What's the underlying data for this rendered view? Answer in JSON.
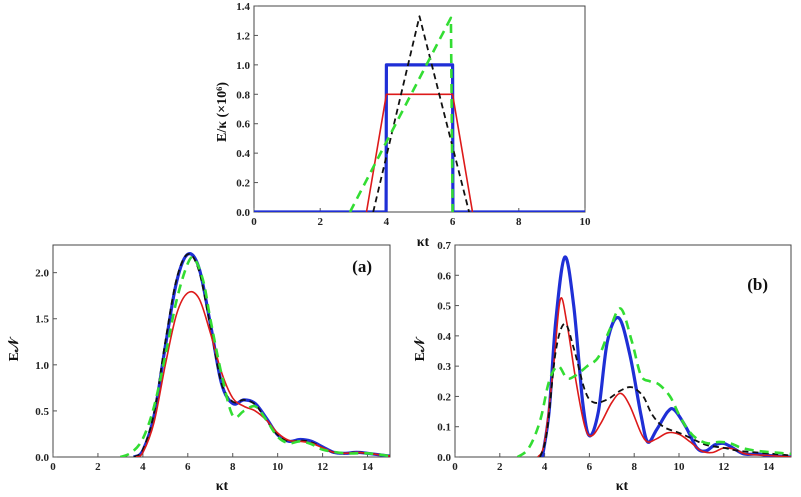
{
  "chart_data": [
    {
      "type": "line",
      "ylabel": "E/κ (×10⁶)",
      "xlabel": "κt",
      "xlim": [
        0,
        10
      ],
      "ylim": [
        0,
        1.4
      ],
      "xticks": [
        "0",
        "2",
        "4",
        "6",
        "8",
        "10"
      ],
      "yticks": [
        "0.0",
        "0.2",
        "0.4",
        "0.6",
        "0.8",
        "1.0",
        "1.2",
        "1.4"
      ],
      "grid": false,
      "series": [
        {
          "color": "#1f2fd6",
          "style": "solid-thick",
          "points": [
            [
              0,
              0
            ],
            [
              3.99,
              0
            ],
            [
              4,
              1.0
            ],
            [
              6,
              1.0
            ],
            [
              6.01,
              0
            ],
            [
              10,
              0
            ]
          ]
        },
        {
          "color": "#dd1a1a",
          "style": "solid-thin",
          "points": [
            [
              3.4,
              0
            ],
            [
              4,
              0.8
            ],
            [
              6,
              0.8
            ],
            [
              6.6,
              0
            ]
          ]
        },
        {
          "color": "#111111",
          "style": "dashed",
          "points": [
            [
              3.6,
              0
            ],
            [
              5,
              1.33
            ],
            [
              6.5,
              0
            ]
          ]
        },
        {
          "color": "#33dd33",
          "style": "dashed-thick",
          "points": [
            [
              2.9,
              0
            ],
            [
              5.95,
              1.32
            ],
            [
              6.0,
              0
            ]
          ]
        }
      ]
    },
    {
      "type": "line",
      "panel_label": "(a)",
      "ylabel": "E𝒩",
      "xlabel": "κt",
      "xlim": [
        0,
        15
      ],
      "ylim": [
        0,
        2.3
      ],
      "xticks": [
        "0",
        "2",
        "4",
        "6",
        "8",
        "10",
        "12",
        "14"
      ],
      "yticks": [
        "0.0",
        "0.5",
        "1.0",
        "1.5",
        "2.0"
      ],
      "grid": false,
      "series": [
        {
          "color": "#1f2fd6",
          "style": "solid-thick",
          "points": [
            [
              3.6,
              0
            ],
            [
              4,
              0.07
            ],
            [
              4.5,
              0.45
            ],
            [
              5,
              1.2
            ],
            [
              5.5,
              1.9
            ],
            [
              6,
              2.2
            ],
            [
              6.5,
              2.05
            ],
            [
              7,
              1.45
            ],
            [
              7.5,
              0.8
            ],
            [
              8,
              0.58
            ],
            [
              8.5,
              0.62
            ],
            [
              9,
              0.58
            ],
            [
              9.5,
              0.42
            ],
            [
              10,
              0.24
            ],
            [
              10.5,
              0.17
            ],
            [
              11,
              0.19
            ],
            [
              11.5,
              0.17
            ],
            [
              12,
              0.11
            ],
            [
              12.5,
              0.05
            ],
            [
              13,
              0.04
            ],
            [
              13.5,
              0.05
            ],
            [
              14,
              0.04
            ],
            [
              14.5,
              0.025
            ],
            [
              15,
              0.01
            ]
          ]
        },
        {
          "color": "#111111",
          "style": "dashed",
          "points": [
            [
              3.6,
              0
            ],
            [
              4,
              0.08
            ],
            [
              4.5,
              0.48
            ],
            [
              5,
              1.25
            ],
            [
              5.5,
              1.93
            ],
            [
              6,
              2.2
            ],
            [
              6.5,
              2.02
            ],
            [
              7,
              1.42
            ],
            [
              7.5,
              0.8
            ],
            [
              8,
              0.6
            ],
            [
              8.5,
              0.62
            ],
            [
              9,
              0.57
            ],
            [
              9.5,
              0.4
            ],
            [
              10,
              0.24
            ],
            [
              10.5,
              0.17
            ],
            [
              11,
              0.18
            ],
            [
              11.5,
              0.16
            ],
            [
              12,
              0.1
            ],
            [
              12.5,
              0.05
            ],
            [
              13,
              0.04
            ],
            [
              13.5,
              0.05
            ],
            [
              14,
              0.04
            ],
            [
              15,
              0.01
            ]
          ]
        },
        {
          "color": "#dd1a1a",
          "style": "solid-thin",
          "points": [
            [
              3.7,
              0
            ],
            [
              4,
              0.05
            ],
            [
              4.5,
              0.38
            ],
            [
              5,
              1.0
            ],
            [
              5.5,
              1.55
            ],
            [
              6,
              1.78
            ],
            [
              6.5,
              1.72
            ],
            [
              7,
              1.35
            ],
            [
              7.5,
              0.92
            ],
            [
              8,
              0.64
            ],
            [
              8.5,
              0.55
            ],
            [
              9,
              0.5
            ],
            [
              9.5,
              0.4
            ],
            [
              10,
              0.26
            ],
            [
              10.5,
              0.18
            ],
            [
              11,
              0.17
            ],
            [
              11.5,
              0.15
            ],
            [
              12,
              0.1
            ],
            [
              12.5,
              0.05
            ],
            [
              13,
              0.04
            ],
            [
              13.5,
              0.05
            ],
            [
              14,
              0.04
            ],
            [
              15,
              0.01
            ]
          ]
        },
        {
          "color": "#33dd33",
          "style": "dashed-thick",
          "points": [
            [
              3,
              0
            ],
            [
              3.5,
              0.05
            ],
            [
              4,
              0.2
            ],
            [
              4.5,
              0.55
            ],
            [
              5,
              1.1
            ],
            [
              5.5,
              1.7
            ],
            [
              6,
              2.1
            ],
            [
              6.3,
              2.15
            ],
            [
              6.7,
              1.9
            ],
            [
              7,
              1.5
            ],
            [
              7.5,
              0.9
            ],
            [
              8,
              0.45
            ],
            [
              8.5,
              0.5
            ],
            [
              9,
              0.55
            ],
            [
              9.5,
              0.4
            ],
            [
              10,
              0.22
            ],
            [
              10.5,
              0.15
            ],
            [
              11,
              0.17
            ],
            [
              11.5,
              0.14
            ],
            [
              12,
              0.08
            ],
            [
              13,
              0.04
            ],
            [
              14,
              0.04
            ],
            [
              15,
              0.01
            ]
          ]
        }
      ]
    },
    {
      "type": "line",
      "panel_label": "(b)",
      "ylabel": "E𝒩",
      "xlabel": "κt",
      "xlim": [
        0,
        15
      ],
      "ylim": [
        0,
        0.7
      ],
      "xticks": [
        "0",
        "2",
        "4",
        "6",
        "8",
        "10",
        "12",
        "14"
      ],
      "yticks": [
        "0.0",
        "0.1",
        "0.2",
        "0.3",
        "0.4",
        "0.5",
        "0.6",
        "0.7"
      ],
      "grid": false,
      "series": [
        {
          "color": "#1f2fd6",
          "style": "solid-thick",
          "points": [
            [
              3.9,
              0
            ],
            [
              4.2,
              0.15
            ],
            [
              4.5,
              0.45
            ],
            [
              4.9,
              0.66
            ],
            [
              5.3,
              0.5
            ],
            [
              5.7,
              0.18
            ],
            [
              6,
              0.07
            ],
            [
              6.4,
              0.15
            ],
            [
              6.8,
              0.38
            ],
            [
              7.3,
              0.46
            ],
            [
              7.8,
              0.34
            ],
            [
              8.3,
              0.14
            ],
            [
              8.6,
              0.05
            ],
            [
              9,
              0.09
            ],
            [
              9.5,
              0.15
            ],
            [
              9.8,
              0.155
            ],
            [
              10.3,
              0.1
            ],
            [
              10.8,
              0.03
            ],
            [
              11.2,
              0.02
            ],
            [
              11.6,
              0.04
            ],
            [
              12,
              0.045
            ],
            [
              12.4,
              0.03
            ],
            [
              12.9,
              0.01
            ],
            [
              13.5,
              0.01
            ],
            [
              14,
              0.005
            ],
            [
              15,
              0.0
            ]
          ]
        },
        {
          "color": "#dd1a1a",
          "style": "solid-thin",
          "points": [
            [
              3.7,
              0
            ],
            [
              4,
              0.05
            ],
            [
              4.4,
              0.3
            ],
            [
              4.7,
              0.52
            ],
            [
              5,
              0.44
            ],
            [
              5.4,
              0.25
            ],
            [
              5.8,
              0.1
            ],
            [
              6.1,
              0.07
            ],
            [
              6.5,
              0.11
            ],
            [
              7,
              0.18
            ],
            [
              7.4,
              0.21
            ],
            [
              7.8,
              0.17
            ],
            [
              8.3,
              0.08
            ],
            [
              8.6,
              0.05
            ],
            [
              9,
              0.06
            ],
            [
              9.5,
              0.08
            ],
            [
              10,
              0.075
            ],
            [
              10.5,
              0.05
            ],
            [
              11,
              0.02
            ],
            [
              11.5,
              0.015
            ],
            [
              12,
              0.03
            ],
            [
              12.5,
              0.025
            ],
            [
              13,
              0.01
            ],
            [
              14,
              0.005
            ],
            [
              15,
              0.0
            ]
          ]
        },
        {
          "color": "#111111",
          "style": "dashed",
          "points": [
            [
              3.8,
              0
            ],
            [
              4.1,
              0.08
            ],
            [
              4.5,
              0.35
            ],
            [
              4.9,
              0.44
            ],
            [
              5.3,
              0.36
            ],
            [
              5.8,
              0.22
            ],
            [
              6.2,
              0.18
            ],
            [
              6.8,
              0.19
            ],
            [
              7.4,
              0.22
            ],
            [
              7.9,
              0.23
            ],
            [
              8.4,
              0.2
            ],
            [
              8.8,
              0.14
            ],
            [
              9.3,
              0.1
            ],
            [
              10,
              0.08
            ],
            [
              10.6,
              0.06
            ],
            [
              11.2,
              0.04
            ],
            [
              12,
              0.03
            ],
            [
              12.7,
              0.02
            ],
            [
              13.5,
              0.015
            ],
            [
              14.3,
              0.01
            ],
            [
              15,
              0.005
            ]
          ]
        },
        {
          "color": "#33dd33",
          "style": "dashed-thick",
          "points": [
            [
              2.8,
              0
            ],
            [
              3.3,
              0.03
            ],
            [
              3.8,
              0.12
            ],
            [
              4.2,
              0.25
            ],
            [
              4.6,
              0.3
            ],
            [
              5,
              0.26
            ],
            [
              5.4,
              0.27
            ],
            [
              5.9,
              0.3
            ],
            [
              6.4,
              0.33
            ],
            [
              6.9,
              0.42
            ],
            [
              7.4,
              0.49
            ],
            [
              7.9,
              0.38
            ],
            [
              8.3,
              0.27
            ],
            [
              8.7,
              0.25
            ],
            [
              9.1,
              0.24
            ],
            [
              9.6,
              0.2
            ],
            [
              10,
              0.14
            ],
            [
              10.4,
              0.09
            ],
            [
              10.8,
              0.06
            ],
            [
              11.3,
              0.045
            ],
            [
              11.8,
              0.05
            ],
            [
              12.3,
              0.045
            ],
            [
              12.8,
              0.03
            ],
            [
              13.5,
              0.02
            ],
            [
              14.3,
              0.015
            ],
            [
              15,
              0.01
            ]
          ]
        }
      ]
    }
  ]
}
